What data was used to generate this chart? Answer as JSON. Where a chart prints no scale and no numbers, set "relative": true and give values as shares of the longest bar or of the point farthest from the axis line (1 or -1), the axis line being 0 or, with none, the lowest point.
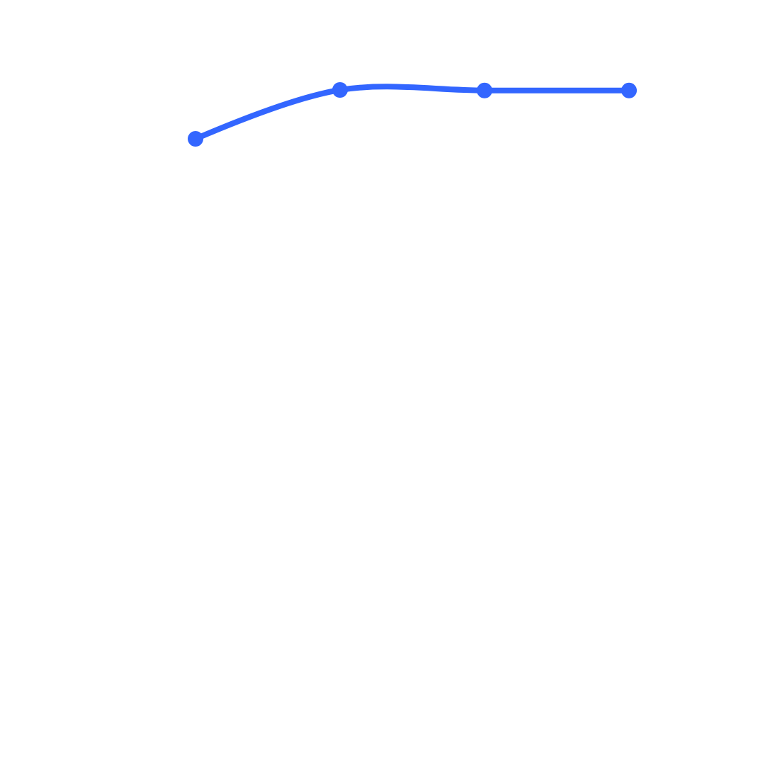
{
  "chart_data": {
    "type": "line",
    "relative": true,
    "categories": [
      null,
      null,
      null,
      null
    ],
    "series": [
      {
        "color": "#3366ff",
        "values": [
          0,
          1,
          0.99,
          0.99
        ]
      }
    ],
    "marker": "circle",
    "line_style": "solid"
  }
}
